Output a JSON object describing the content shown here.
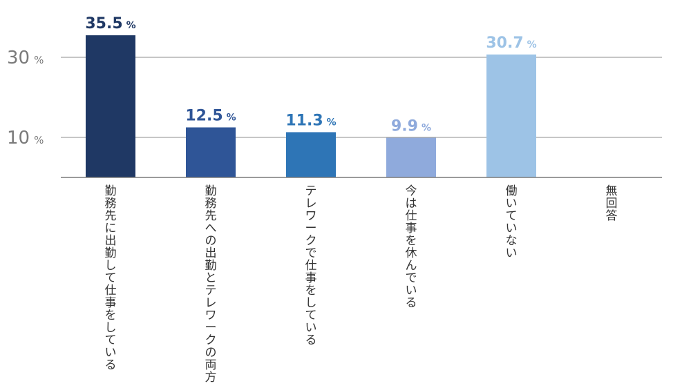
{
  "chart_data": {
    "type": "bar",
    "categories": [
      "勤務先に出勤して仕事をしている",
      "勤務先への出勤とテレワークの両方",
      "テレワークで仕事をしている",
      "今は仕事を休んでいる",
      "働いていない",
      "無回答"
    ],
    "values": [
      35.5,
      12.5,
      11.3,
      9.9,
      30.7,
      null
    ],
    "value_labels": [
      "35.5",
      "12.5",
      "11.3",
      "9.9",
      "30.7",
      ""
    ],
    "unit": "%",
    "y_ticks": [
      {
        "value": 10,
        "label": "10"
      },
      {
        "value": 30,
        "label": "30"
      }
    ],
    "ylim": [
      0,
      37
    ],
    "grid": true,
    "colors": {
      "bars": [
        "#1f3864",
        "#2f5597",
        "#2e75b6",
        "#8faadc",
        "#9dc3e6",
        "#9dc3e6"
      ],
      "labels": [
        "#1f3864",
        "#2f5597",
        "#2e75b6",
        "#8faadc",
        "#9dc3e6",
        "#9dc3e6"
      ],
      "grid": "#8c8c8c",
      "axis": "#7a7a7a",
      "tick_text": "#7a7a7a",
      "category_text": "#333333"
    }
  }
}
